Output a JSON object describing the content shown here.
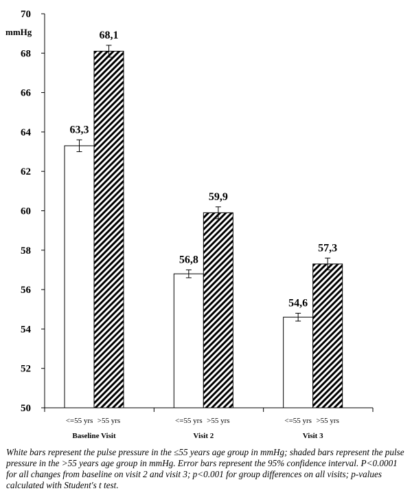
{
  "chart_data": {
    "type": "bar",
    "unit": "mmHg",
    "ylim": [
      50,
      70
    ],
    "yticks": [
      50,
      52,
      54,
      56,
      58,
      60,
      62,
      64,
      66,
      68,
      70
    ],
    "categories": [
      "Baseline Visit",
      "Visit 2",
      "Visit 3"
    ],
    "series": [
      {
        "name": "<=55  yrs",
        "fill": "white",
        "values": [
          63.3,
          56.8,
          54.6
        ],
        "value_labels": [
          "63,3",
          "56,8",
          "54,6"
        ],
        "ci": [
          0.3,
          0.2,
          0.2
        ]
      },
      {
        "name": ">55 yrs",
        "fill": "hatched",
        "values": [
          68.1,
          59.9,
          57.3
        ],
        "value_labels": [
          "68,1",
          "59,9",
          "57,3"
        ],
        "ci": [
          0.3,
          0.3,
          0.3
        ]
      }
    ],
    "series_labels_per_group": [
      [
        "<=55  yrs",
        ">55 yrs"
      ],
      [
        "<=55 yrs",
        ">55 yrs"
      ],
      [
        "<=55 yrs",
        ">55 yrs"
      ]
    ],
    "grid": false
  },
  "caption": "White bars represent the pulse pressure in the ≤55 years age group in mmHg; shaded bars represent the pulse pressure in the >55 years age group in mmHg. Error bars represent the 95% confidence interval. P<0.0001 for all changes from baseline on visit 2 and visit 3; p<0.001 for group differences on all visits; p-values calculated with Student's t test.",
  "colors": {
    "bar_stroke": "#000000",
    "bar_white": "#ffffff",
    "hatch": "#000000"
  }
}
